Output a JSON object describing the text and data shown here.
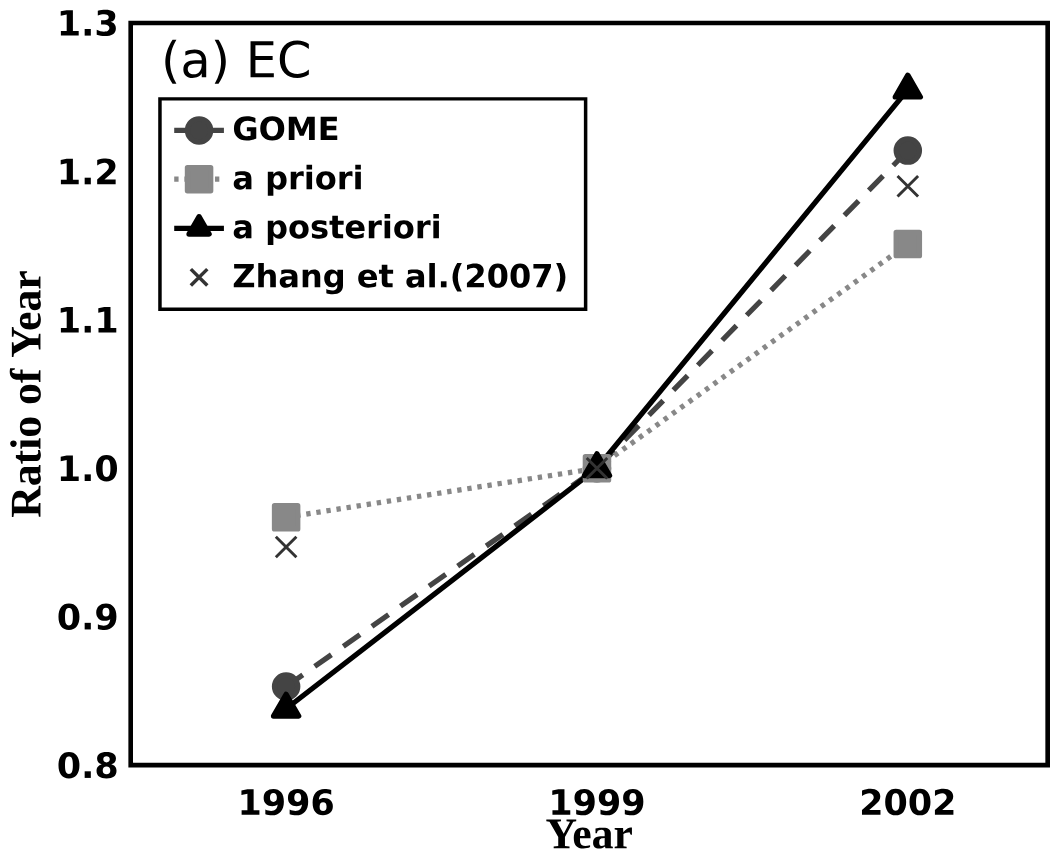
{
  "chart_data": {
    "type": "line",
    "title": "(a) EC",
    "xlabel": "Year",
    "ylabel": "Ratio of Year",
    "categories": [
      "1996",
      "1999",
      "2002"
    ],
    "series": [
      {
        "name": "GOME",
        "color": "#444444",
        "values": [
          0.853,
          1.0,
          1.214
        ],
        "marker": "circle",
        "line_style": "dashed"
      },
      {
        "name": "a  priori",
        "color": "#888888",
        "values": [
          0.967,
          1.0,
          1.151
        ],
        "marker": "square",
        "line_style": "dotted"
      },
      {
        "name": "a  posteriori",
        "color": "#000000",
        "values": [
          0.838,
          1.0,
          1.255
        ],
        "marker": "triangle",
        "line_style": "solid"
      },
      {
        "name": "Zhang et al.(2007)",
        "type": "scatter",
        "color": "#333333",
        "values": [
          0.947,
          1.0,
          1.19
        ],
        "marker": "cross"
      }
    ],
    "ylim": [
      0.8,
      1.3
    ],
    "yticks": [
      0.8,
      0.9,
      {
        "value": 1.0,
        "label": "1.0"
      },
      1.1,
      1.2,
      1.3
    ],
    "grid": false,
    "legend": "top left"
  }
}
